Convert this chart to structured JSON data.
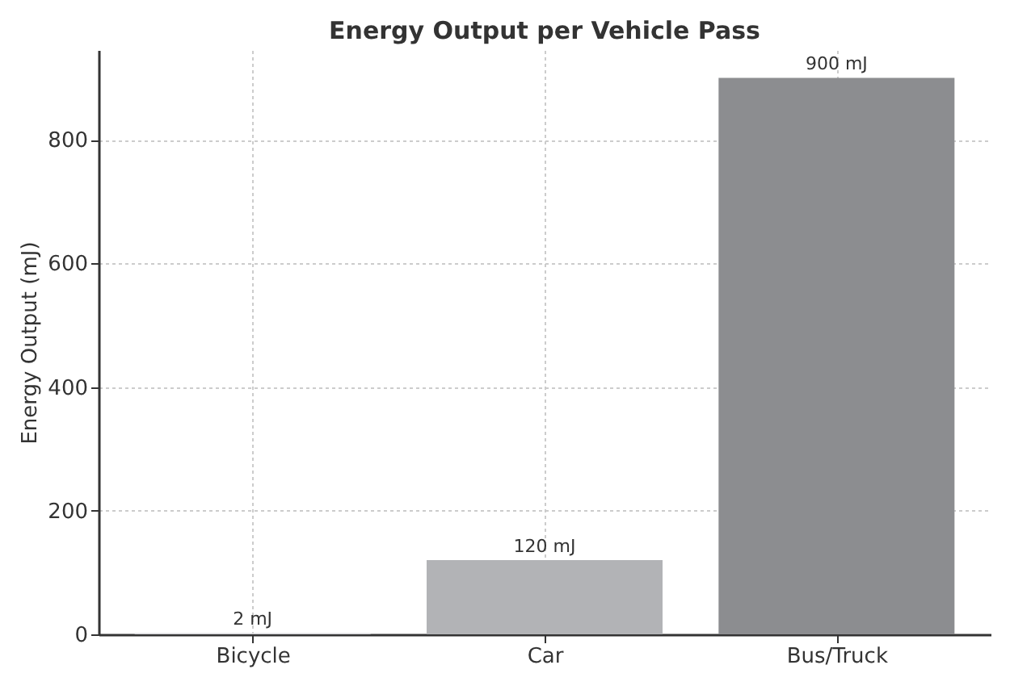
{
  "chart_data": {
    "type": "bar",
    "title": "Energy Output per Vehicle Pass",
    "ylabel": "Energy Output (mJ)",
    "categories": [
      "Bicycle",
      "Car",
      "Bus/Truck"
    ],
    "values": [
      2,
      120,
      900
    ],
    "colors": [
      "#d6d6d9",
      "#b2b3b6",
      "#8c8d90"
    ],
    "value_labels": [
      "2 mJ",
      "120 mJ",
      "900 mJ"
    ],
    "ylim": [
      0,
      945
    ],
    "yticks": [
      0,
      200,
      400,
      600,
      800
    ],
    "grid": true
  }
}
